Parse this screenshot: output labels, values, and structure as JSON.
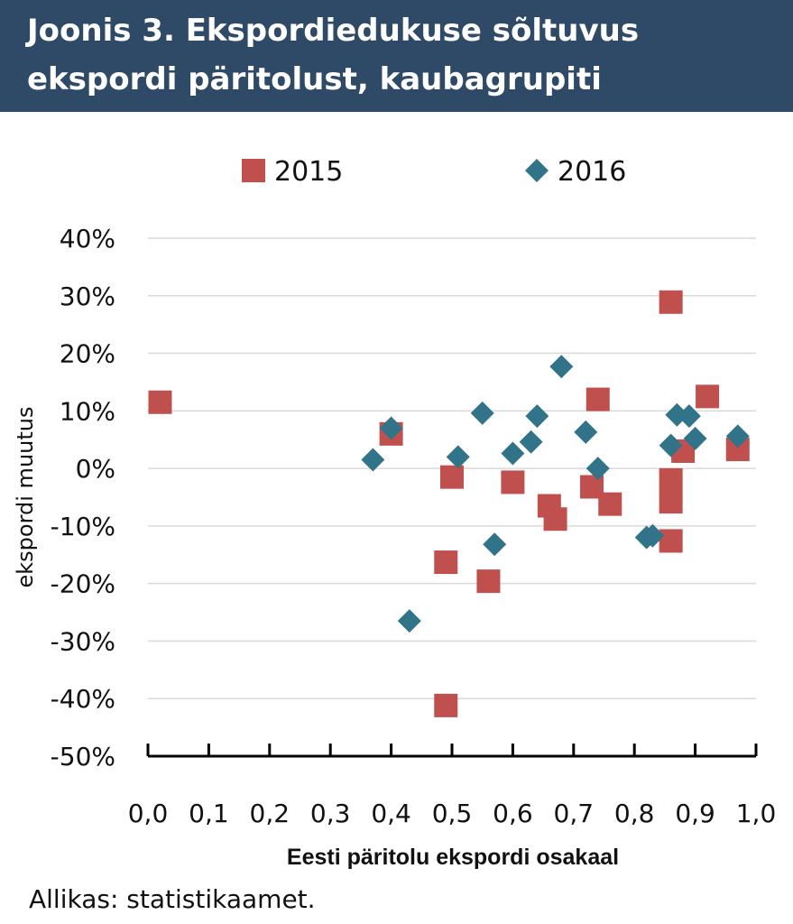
{
  "header": {
    "title_line1": "Joonis 3. Ekspordiedukuse sõltuvus",
    "title_line2": "ekspordi päritolust, kaubagrupiti"
  },
  "source": "Allikas: statistikaamet.",
  "colors": {
    "header_bg": "#2e4a66",
    "series_2015": "#c0504d",
    "series_2016": "#31748a",
    "grid": "#d9d9d9"
  },
  "chart_data": {
    "type": "scatter",
    "xlabel": "Eesti päritolu ekspordi osakaal",
    "ylabel": "ekspordi muutus",
    "xlim": [
      0,
      1
    ],
    "ylim": [
      -50,
      40
    ],
    "x_ticks": [
      "0,0",
      "0,1",
      "0,2",
      "0,3",
      "0,4",
      "0,5",
      "0,6",
      "0,7",
      "0,8",
      "0,9",
      "1,0"
    ],
    "y_ticks": [
      "40%",
      "30%",
      "20%",
      "10%",
      "0%",
      "-10%",
      "-20%",
      "-30%",
      "-40%",
      "-50%"
    ],
    "y_tick_values": [
      40,
      30,
      20,
      10,
      0,
      -10,
      -20,
      -30,
      -40,
      -50
    ],
    "grid": "horizontal",
    "legend_position": "top",
    "series": [
      {
        "name": "2015",
        "marker": "square",
        "points": [
          [
            0.02,
            11.5
          ],
          [
            0.4,
            6.0
          ],
          [
            0.49,
            -16.3
          ],
          [
            0.5,
            -1.5
          ],
          [
            0.49,
            -41.2
          ],
          [
            0.56,
            -19.6
          ],
          [
            0.6,
            -2.4
          ],
          [
            0.66,
            -6.5
          ],
          [
            0.67,
            -8.8
          ],
          [
            0.73,
            -3.2
          ],
          [
            0.74,
            12.0
          ],
          [
            0.76,
            -6.2
          ],
          [
            0.86,
            28.9
          ],
          [
            0.86,
            -2.0
          ],
          [
            0.86,
            -5.8
          ],
          [
            0.86,
            -12.6
          ],
          [
            0.88,
            3.0
          ],
          [
            0.92,
            12.5
          ],
          [
            0.97,
            3.3
          ]
        ]
      },
      {
        "name": "2016",
        "marker": "diamond",
        "points": [
          [
            0.37,
            1.5
          ],
          [
            0.4,
            7.0
          ],
          [
            0.43,
            -26.5
          ],
          [
            0.51,
            2.0
          ],
          [
            0.55,
            9.6
          ],
          [
            0.57,
            -13.2
          ],
          [
            0.6,
            2.6
          ],
          [
            0.63,
            4.6
          ],
          [
            0.64,
            9.1
          ],
          [
            0.68,
            17.7
          ],
          [
            0.72,
            6.3
          ],
          [
            0.74,
            0.0
          ],
          [
            0.82,
            -12.0
          ],
          [
            0.83,
            -11.7
          ],
          [
            0.86,
            4.0
          ],
          [
            0.87,
            9.3
          ],
          [
            0.89,
            9.1
          ],
          [
            0.9,
            5.2
          ],
          [
            0.97,
            5.6
          ]
        ]
      }
    ]
  }
}
